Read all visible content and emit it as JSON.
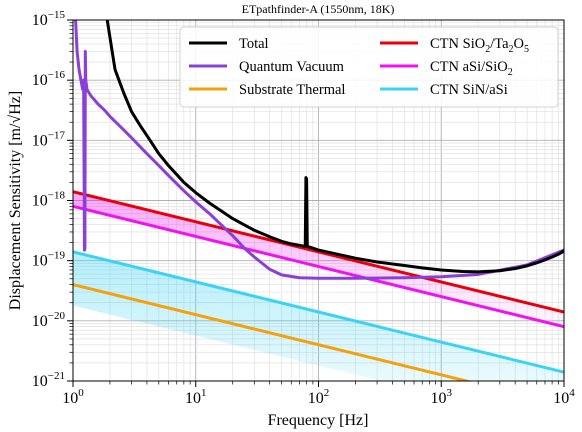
{
  "chart_data": {
    "type": "line",
    "title": "ETpathfinder-A (1550nm, 18K)",
    "xlabel": "Frequency [Hz]",
    "ylabel": "Displacement Sensitivity [m/√Hz]",
    "x_scale": "log",
    "y_scale": "log",
    "xlim": [
      1,
      10000
    ],
    "ylim": [
      1e-21,
      1e-15
    ],
    "grid": true,
    "legend": "top-right",
    "x_ticks": [
      {
        "value": 1,
        "base": "10",
        "exp": "0"
      },
      {
        "value": 10,
        "base": "10",
        "exp": "1"
      },
      {
        "value": 100,
        "base": "10",
        "exp": "2"
      },
      {
        "value": 1000,
        "base": "10",
        "exp": "3"
      },
      {
        "value": 10000,
        "base": "10",
        "exp": "4"
      }
    ],
    "y_ticks": [
      {
        "value": 1e-15,
        "base": "10",
        "exp": "−15"
      },
      {
        "value": 1e-16,
        "base": "10",
        "exp": "−16"
      },
      {
        "value": 1e-17,
        "base": "10",
        "exp": "−17"
      },
      {
        "value": 1e-18,
        "base": "10",
        "exp": "−18"
      },
      {
        "value": 1e-19,
        "base": "10",
        "exp": "−19"
      },
      {
        "value": 1e-20,
        "base": "10",
        "exp": "−20"
      },
      {
        "value": 1e-21,
        "base": "10",
        "exp": "−21"
      }
    ],
    "series": [
      {
        "name": "Total",
        "legend_parts": [
          {
            "t": "Total"
          }
        ],
        "color": "#000000",
        "x": [
          1.9,
          2.2,
          2.6,
          3,
          3.5,
          4,
          5,
          6,
          7,
          8,
          10,
          13,
          16,
          20,
          25,
          30,
          40,
          50,
          60,
          70,
          78,
          79,
          80,
          81,
          82,
          85,
          100,
          150,
          200,
          300,
          500,
          700,
          1000,
          1500,
          2000,
          3000,
          4000,
          5000,
          6000,
          7000,
          8000,
          9000,
          10000
        ],
        "y": [
          1e-15,
          1.5e-16,
          6e-17,
          3e-17,
          1.8e-17,
          1.2e-17,
          6e-18,
          3.8e-18,
          2.7e-18,
          2e-18,
          1.35e-18,
          9e-19,
          6.8e-19,
          5e-19,
          3.9e-19,
          3.2e-19,
          2.5e-19,
          2.1e-19,
          1.9e-19,
          1.8e-19,
          1.72e-19,
          2.4e-18,
          2.3e-18,
          1.75e-19,
          1.7e-19,
          1.68e-19,
          1.5e-19,
          1.25e-19,
          1.1e-19,
          9.5e-20,
          8.3e-20,
          7.6e-20,
          7e-20,
          6.6e-20,
          6.5e-20,
          6.8e-20,
          7.4e-20,
          8.2e-20,
          9.2e-20,
          1.03e-19,
          1.15e-19,
          1.28e-19,
          1.45e-19
        ]
      },
      {
        "name": "Quantum Vacuum",
        "legend_parts": [
          {
            "t": "Quantum Vacuum"
          }
        ],
        "color": "#8A3FD6",
        "x": [
          1.05,
          1.08,
          1.12,
          1.16,
          1.2,
          1.22,
          1.24,
          1.25,
          1.26,
          1.27,
          1.3,
          1.4,
          1.6,
          1.8,
          2,
          2.5,
          3,
          4,
          5,
          6,
          8,
          10,
          13,
          16,
          20,
          25,
          30,
          40,
          50,
          70,
          100,
          200,
          500,
          1000,
          2000,
          5000,
          10000
        ],
        "y": [
          1e-15,
          3e-16,
          1.5e-16,
          1e-16,
          7e-17,
          1e-16,
          1.5e-19,
          1.6e-19,
          3e-16,
          1e-16,
          7e-17,
          5.5e-17,
          4e-17,
          3.2e-17,
          2.5e-17,
          1.6e-17,
          1.1e-17,
          6e-18,
          3.8e-18,
          2.6e-18,
          1.45e-18,
          9.5e-19,
          6e-19,
          4e-19,
          2.6e-19,
          1.6e-19,
          1.15e-19,
          7.2e-20,
          5.8e-20,
          5.2e-20,
          5.1e-20,
          5.1e-20,
          5.2e-20,
          5.4e-20,
          5.9e-20,
          8.5e-20,
          1.5e-19
        ]
      },
      {
        "name": "Substrate Thermal",
        "legend_parts": [
          {
            "t": "Substrate Thermal"
          }
        ],
        "color": "#F5A10C",
        "x": [
          1,
          10000
        ],
        "y": [
          4e-20,
          4e-22
        ]
      },
      {
        "name": "CTN SiO2/Ta2O5",
        "legend_parts": [
          {
            "t": "CTN SiO"
          },
          {
            "t": "2",
            "sub": true
          },
          {
            "t": "/Ta"
          },
          {
            "t": "2",
            "sub": true
          },
          {
            "t": "O"
          },
          {
            "t": "5",
            "sub": true
          }
        ],
        "color": "#E8000B",
        "x": [
          1,
          10000
        ],
        "y": [
          1.4e-18,
          1.4e-20
        ]
      },
      {
        "name": "CTN aSi/SiO2",
        "legend_parts": [
          {
            "t": "CTN aSi/SiO"
          },
          {
            "t": "2",
            "sub": true
          }
        ],
        "color": "#F012F0",
        "x": [
          1,
          10000
        ],
        "y": [
          8e-19,
          8e-21
        ]
      },
      {
        "name": "CTN SiN/aSi",
        "legend_parts": [
          {
            "t": "CTN SiN/aSi"
          }
        ],
        "color": "#3AD3F5",
        "x": [
          1,
          10000
        ],
        "y": [
          1.4e-19,
          1.4e-21
        ]
      }
    ],
    "bands": [
      {
        "color": "#F012F0",
        "x": [
          1,
          10000
        ],
        "upper": [
          1.4e-18,
          1.4e-20
        ],
        "lower": [
          8e-19,
          8e-21
        ]
      },
      {
        "color": "#3AD3F5",
        "x": [
          1,
          10000
        ],
        "upper": [
          1.4e-19,
          1.4e-21
        ],
        "lower": [
          1.8e-20,
          1.8e-22
        ]
      }
    ]
  }
}
